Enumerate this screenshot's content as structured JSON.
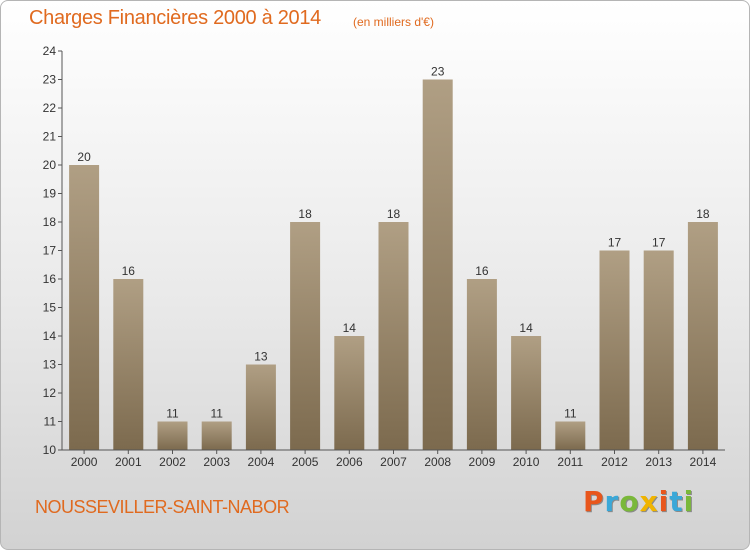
{
  "header": {
    "title": "Charges Financières 2000 à 2014",
    "subtitle": "(en milliers d'€)"
  },
  "footer": {
    "commune": "NOUSSEVILLER-SAINT-NABOR",
    "logo_letters": [
      "P",
      "r",
      "o",
      "x",
      "i",
      "t",
      "i"
    ],
    "logo_colors": [
      "#e8561c",
      "#3aa8d8",
      "#7ab83a",
      "#f0b400",
      "#e8561c",
      "#3aa8d8",
      "#7ab83a"
    ]
  },
  "colors": {
    "bar_light": "#b09f84",
    "bar_dark": "#7c6a4e",
    "accent": "#e06a1f"
  },
  "chart_data": {
    "type": "bar",
    "categories": [
      "2000",
      "2001",
      "2002",
      "2003",
      "2004",
      "2005",
      "2006",
      "2007",
      "2008",
      "2009",
      "2010",
      "2011",
      "2012",
      "2013",
      "2014"
    ],
    "values": [
      20,
      16,
      11,
      11,
      13,
      18,
      14,
      18,
      23,
      16,
      14,
      11,
      17,
      17,
      18
    ],
    "title": "Charges Financières 2000 à 2014",
    "subtitle": "(en milliers d'€)",
    "xlabel": "",
    "ylabel": "",
    "ylim": [
      10,
      24
    ],
    "yticks": [
      10,
      11,
      12,
      13,
      14,
      15,
      16,
      17,
      18,
      19,
      20,
      21,
      22,
      23,
      24
    ],
    "grid": false,
    "legend": "none"
  }
}
